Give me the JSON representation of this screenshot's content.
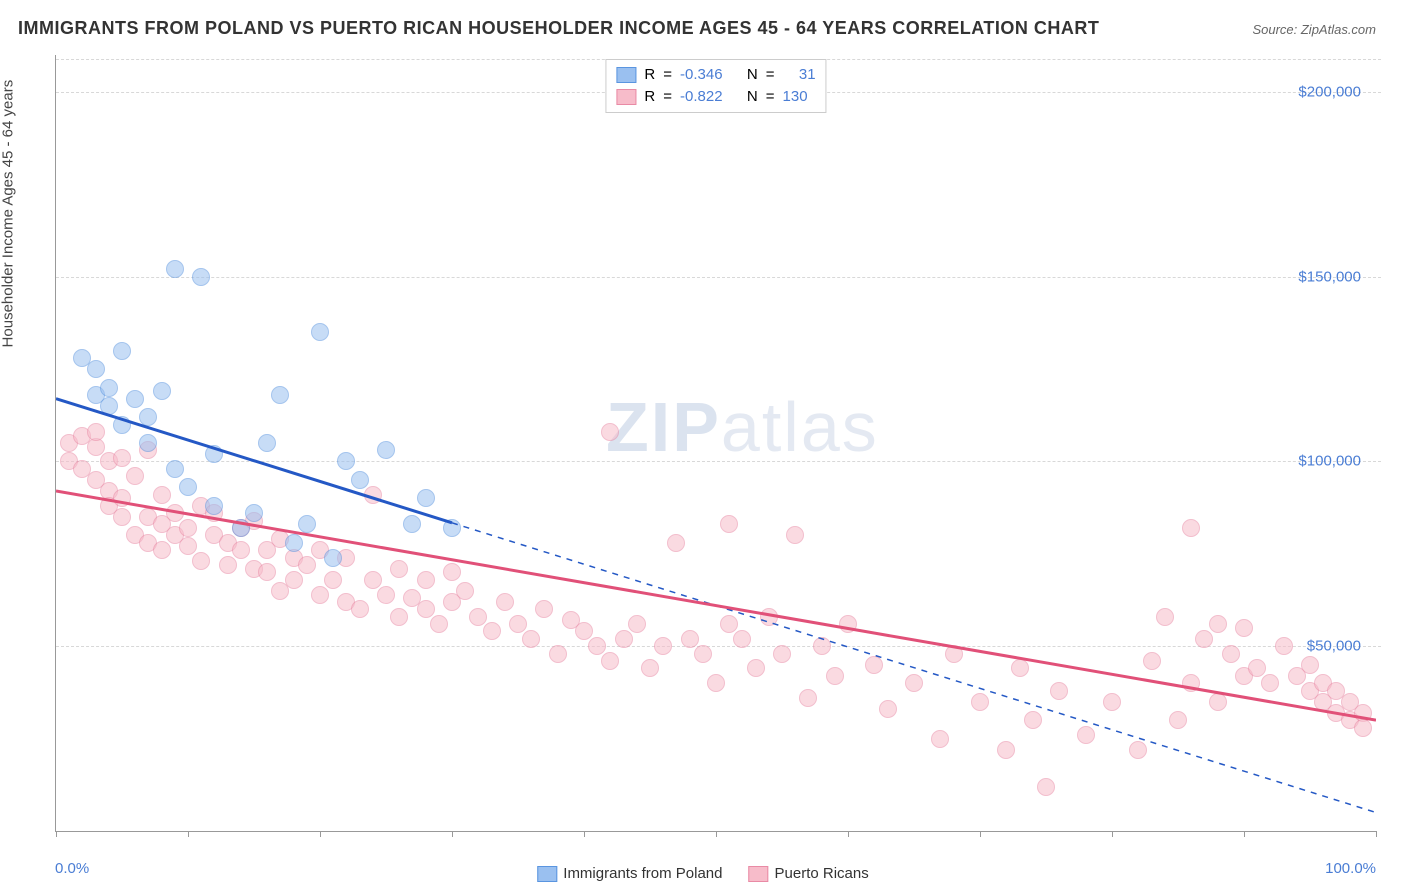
{
  "title": "IMMIGRANTS FROM POLAND VS PUERTO RICAN HOUSEHOLDER INCOME AGES 45 - 64 YEARS CORRELATION CHART",
  "source_label": "Source: ",
  "source_name": "ZipAtlas.com",
  "y_axis_label": "Householder Income Ages 45 - 64 years",
  "watermark_a": "ZIP",
  "watermark_b": "atlas",
  "chart": {
    "type": "scatter",
    "xlim": [
      0,
      100
    ],
    "ylim": [
      0,
      210000
    ],
    "x_unit": "%",
    "x_ticks_pct": [
      0,
      10,
      20,
      30,
      40,
      50,
      60,
      70,
      80,
      90,
      100
    ],
    "x_left_label": "0.0%",
    "x_right_label": "100.0%",
    "y_gridlines": [
      50000,
      100000,
      150000,
      200000
    ],
    "y_tick_labels": [
      "$50,000",
      "$100,000",
      "$150,000",
      "$200,000"
    ],
    "background_color": "#ffffff",
    "grid_color": "#d8d8d8",
    "axis_color": "#999999",
    "tick_label_color": "#4a7dd4",
    "marker_radius": 9,
    "marker_opacity": 0.55,
    "series": [
      {
        "name": "Immigrants from Poland",
        "fill": "#9ac0f0",
        "stroke": "#5a95e0",
        "line_color": "#2458c5",
        "line_width": 3,
        "line_solid_xrange": [
          0,
          30
        ],
        "r_value": "-0.346",
        "n_value": "31",
        "trend_y_at_x0": 117000,
        "trend_y_at_x100": 5000,
        "points": [
          [
            2,
            128000
          ],
          [
            3,
            125000
          ],
          [
            3,
            118000
          ],
          [
            4,
            120000
          ],
          [
            4,
            115000
          ],
          [
            5,
            130000
          ],
          [
            5,
            110000
          ],
          [
            6,
            117000
          ],
          [
            7,
            105000
          ],
          [
            7,
            112000
          ],
          [
            8,
            119000
          ],
          [
            9,
            98000
          ],
          [
            9,
            152000
          ],
          [
            10,
            93000
          ],
          [
            11,
            150000
          ],
          [
            12,
            102000
          ],
          [
            12,
            88000
          ],
          [
            14,
            82000
          ],
          [
            15,
            86000
          ],
          [
            16,
            105000
          ],
          [
            17,
            118000
          ],
          [
            18,
            78000
          ],
          [
            19,
            83000
          ],
          [
            20,
            135000
          ],
          [
            21,
            74000
          ],
          [
            22,
            100000
          ],
          [
            23,
            95000
          ],
          [
            25,
            103000
          ],
          [
            27,
            83000
          ],
          [
            28,
            90000
          ],
          [
            30,
            82000
          ]
        ]
      },
      {
        "name": "Puerto Ricans",
        "fill": "#f7bcca",
        "stroke": "#e98aa5",
        "line_color": "#e15078",
        "line_width": 3,
        "line_solid_xrange": [
          0,
          100
        ],
        "r_value": "-0.822",
        "n_value": "130",
        "trend_y_at_x0": 92000,
        "trend_y_at_x100": 30000,
        "points": [
          [
            1,
            105000
          ],
          [
            1,
            100000
          ],
          [
            2,
            107000
          ],
          [
            2,
            98000
          ],
          [
            3,
            104000
          ],
          [
            3,
            95000
          ],
          [
            3,
            108000
          ],
          [
            4,
            100000
          ],
          [
            4,
            92000
          ],
          [
            4,
            88000
          ],
          [
            5,
            101000
          ],
          [
            5,
            90000
          ],
          [
            5,
            85000
          ],
          [
            6,
            96000
          ],
          [
            6,
            80000
          ],
          [
            7,
            103000
          ],
          [
            7,
            85000
          ],
          [
            7,
            78000
          ],
          [
            8,
            91000
          ],
          [
            8,
            83000
          ],
          [
            8,
            76000
          ],
          [
            9,
            86000
          ],
          [
            9,
            80000
          ],
          [
            10,
            82000
          ],
          [
            10,
            77000
          ],
          [
            11,
            88000
          ],
          [
            11,
            73000
          ],
          [
            12,
            80000
          ],
          [
            12,
            86000
          ],
          [
            13,
            78000
          ],
          [
            13,
            72000
          ],
          [
            14,
            76000
          ],
          [
            14,
            82000
          ],
          [
            15,
            71000
          ],
          [
            15,
            84000
          ],
          [
            16,
            70000
          ],
          [
            16,
            76000
          ],
          [
            17,
            79000
          ],
          [
            17,
            65000
          ],
          [
            18,
            74000
          ],
          [
            18,
            68000
          ],
          [
            19,
            72000
          ],
          [
            20,
            64000
          ],
          [
            20,
            76000
          ],
          [
            21,
            68000
          ],
          [
            22,
            62000
          ],
          [
            22,
            74000
          ],
          [
            23,
            60000
          ],
          [
            24,
            68000
          ],
          [
            24,
            91000
          ],
          [
            25,
            64000
          ],
          [
            26,
            58000
          ],
          [
            26,
            71000
          ],
          [
            27,
            63000
          ],
          [
            28,
            60000
          ],
          [
            28,
            68000
          ],
          [
            29,
            56000
          ],
          [
            30,
            62000
          ],
          [
            30,
            70000
          ],
          [
            31,
            65000
          ],
          [
            32,
            58000
          ],
          [
            33,
            54000
          ],
          [
            34,
            62000
          ],
          [
            35,
            56000
          ],
          [
            36,
            52000
          ],
          [
            37,
            60000
          ],
          [
            38,
            48000
          ],
          [
            39,
            57000
          ],
          [
            40,
            54000
          ],
          [
            41,
            50000
          ],
          [
            42,
            108000
          ],
          [
            42,
            46000
          ],
          [
            43,
            52000
          ],
          [
            44,
            56000
          ],
          [
            45,
            44000
          ],
          [
            46,
            50000
          ],
          [
            47,
            78000
          ],
          [
            48,
            52000
          ],
          [
            49,
            48000
          ],
          [
            50,
            40000
          ],
          [
            51,
            56000
          ],
          [
            51,
            83000
          ],
          [
            52,
            52000
          ],
          [
            53,
            44000
          ],
          [
            54,
            58000
          ],
          [
            55,
            48000
          ],
          [
            56,
            80000
          ],
          [
            57,
            36000
          ],
          [
            58,
            50000
          ],
          [
            59,
            42000
          ],
          [
            60,
            56000
          ],
          [
            62,
            45000
          ],
          [
            63,
            33000
          ],
          [
            65,
            40000
          ],
          [
            67,
            25000
          ],
          [
            68,
            48000
          ],
          [
            70,
            35000
          ],
          [
            72,
            22000
          ],
          [
            73,
            44000
          ],
          [
            74,
            30000
          ],
          [
            75,
            12000
          ],
          [
            76,
            38000
          ],
          [
            78,
            26000
          ],
          [
            80,
            35000
          ],
          [
            82,
            22000
          ],
          [
            83,
            46000
          ],
          [
            84,
            58000
          ],
          [
            85,
            30000
          ],
          [
            86,
            82000
          ],
          [
            86,
            40000
          ],
          [
            87,
            52000
          ],
          [
            88,
            56000
          ],
          [
            88,
            35000
          ],
          [
            89,
            48000
          ],
          [
            90,
            55000
          ],
          [
            90,
            42000
          ],
          [
            91,
            44000
          ],
          [
            92,
            40000
          ],
          [
            93,
            50000
          ],
          [
            94,
            42000
          ],
          [
            95,
            45000
          ],
          [
            95,
            38000
          ],
          [
            96,
            40000
          ],
          [
            96,
            35000
          ],
          [
            97,
            38000
          ],
          [
            97,
            32000
          ],
          [
            98,
            35000
          ],
          [
            98,
            30000
          ],
          [
            99,
            32000
          ],
          [
            99,
            28000
          ]
        ]
      }
    ]
  },
  "legend_top": {
    "r_label": "R",
    "n_label": "N",
    "eq": "="
  },
  "legend_bottom": {}
}
